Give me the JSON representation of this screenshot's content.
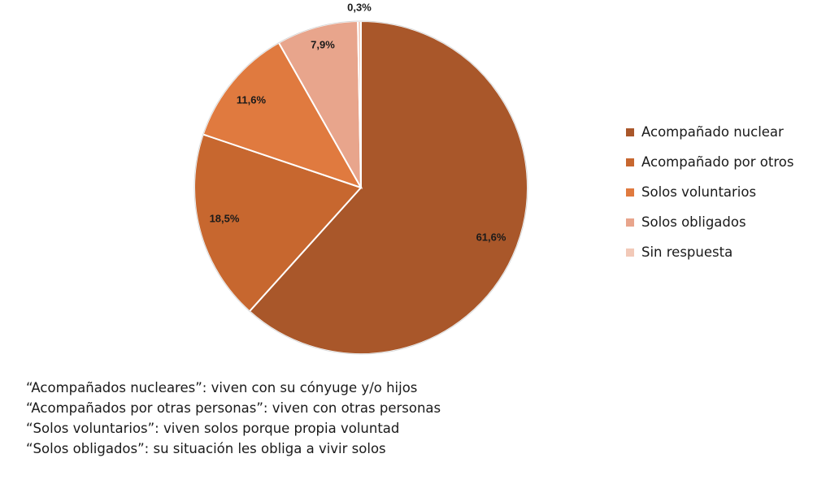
{
  "chart_data": {
    "type": "pie",
    "categories": [
      "Acompañado nuclear",
      "Acompañado por otros",
      "Solos voluntarios",
      "Solos obligados",
      "Sin respuesta"
    ],
    "values": [
      61.6,
      18.5,
      11.6,
      7.9,
      0.3
    ],
    "value_labels": [
      "61,6%",
      "18,5%",
      "11,6%",
      "7,9%",
      "0,3%"
    ],
    "colors": [
      "#A9572A",
      "#C7672F",
      "#E07A3F",
      "#E8A58C",
      "#F2C9B8"
    ],
    "start_angle": "12 o'clock",
    "direction": "clockwise",
    "legend_position": "right"
  },
  "notes": [
    "“Acompañados nucleares”: viven con su cónyuge y/o hijos",
    "“Acompañados por otras personas”: viven con otras personas",
    "“Solos voluntarios”: viven solos porque propia voluntad",
    "“Solos obligados”: su situación les obliga a vivir solos"
  ]
}
